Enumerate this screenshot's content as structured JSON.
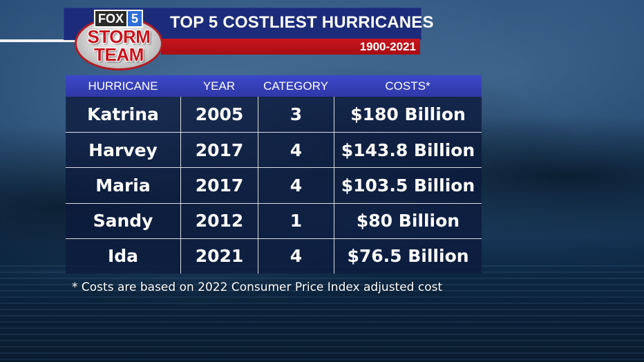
{
  "logo": {
    "fox_text": "FOX",
    "channel_number": "5",
    "line1": "STORM",
    "line2": "TEAM"
  },
  "header": {
    "title": "TOP 5 COSTLIEST HURRICANES",
    "years": "1900-2021"
  },
  "table": {
    "columns": [
      "HURRICANE",
      "YEAR",
      "CATEGORY",
      "COSTS*"
    ],
    "rows": [
      {
        "name": "Katrina",
        "year": "2005",
        "category": "3",
        "cost": "$180 Billion"
      },
      {
        "name": "Harvey",
        "year": "2017",
        "category": "4",
        "cost": "$143.8 Billion"
      },
      {
        "name": "Maria",
        "year": "2017",
        "category": "4",
        "cost": "$103.5 Billion"
      },
      {
        "name": "Sandy",
        "year": "2012",
        "category": "1",
        "cost": "$80 Billion"
      },
      {
        "name": "Ida",
        "year": "2021",
        "category": "4",
        "cost": "$76.5 Billion"
      }
    ]
  },
  "footnote": "* Costs are based on 2022 Consumer Price Index adjusted cost",
  "colors": {
    "header_blue": "#1c2c7a",
    "header_red": "#c9141c",
    "table_header": "#3c48c8",
    "brand_red": "#c8141c"
  }
}
